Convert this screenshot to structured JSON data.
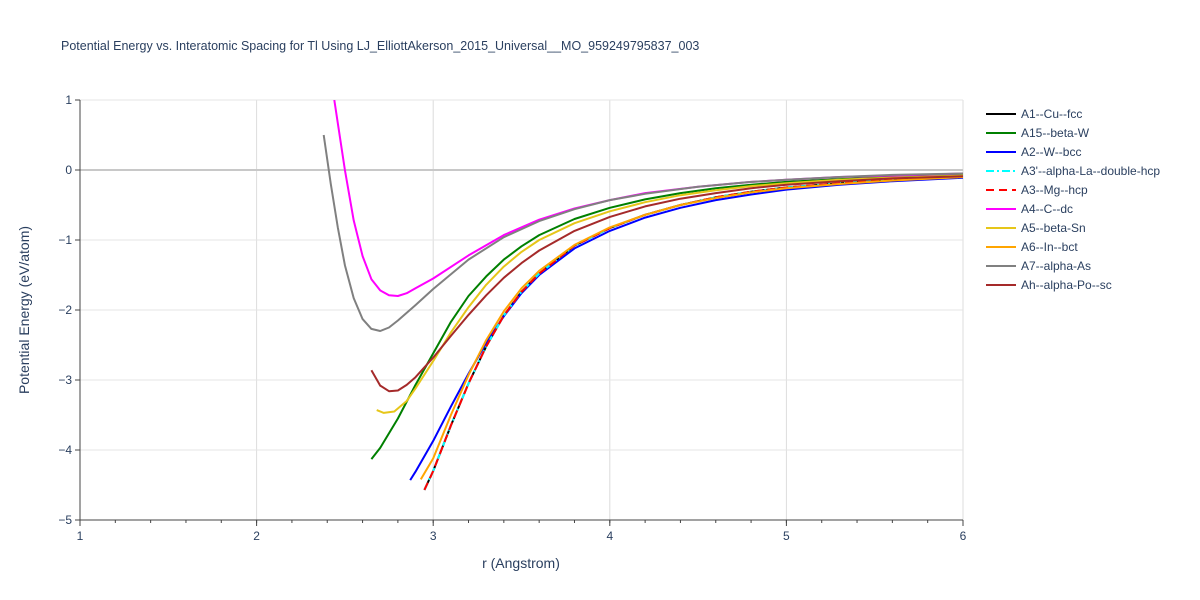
{
  "chart_data": {
    "type": "line",
    "title": "Potential Energy vs. Interatomic Spacing for Tl Using LJ_ElliottAkerson_2015_Universal__MO_959249795837_003",
    "xlabel": "r (Angstrom)",
    "ylabel": "Potential Energy (eV/atom)",
    "xlim": [
      1,
      6
    ],
    "ylim": [
      -5,
      1
    ],
    "x_ticks": [
      1,
      2,
      3,
      4,
      5,
      6
    ],
    "x_tick_labels": [
      "1",
      "2",
      "3",
      "4",
      "5",
      "6"
    ],
    "y_ticks": [
      1,
      0,
      -1,
      -2,
      -3,
      -4,
      -5
    ],
    "y_tick_labels": [
      "1",
      "0",
      "−1",
      "−2",
      "−3",
      "−4",
      "−5"
    ],
    "grid": true,
    "legend_position": "top-right",
    "series": [
      {
        "name": "A1--Cu--fcc",
        "color": "#000000",
        "dash": "solid",
        "x": [
          2.95,
          3.0,
          3.1,
          3.2,
          3.3,
          3.4,
          3.5,
          3.6,
          3.8,
          4.0,
          4.2,
          4.4,
          4.6,
          4.8,
          5.0,
          5.3,
          5.6,
          6.0
        ],
        "y": [
          -4.57,
          -4.3,
          -3.65,
          -3.05,
          -2.52,
          -2.08,
          -1.74,
          -1.48,
          -1.08,
          -0.83,
          -0.64,
          -0.5,
          -0.39,
          -0.31,
          -0.25,
          -0.19,
          -0.14,
          -0.1
        ]
      },
      {
        "name": "A15--beta-W",
        "color": "#008000",
        "dash": "solid",
        "x": [
          2.65,
          2.7,
          2.8,
          2.9,
          3.0,
          3.1,
          3.2,
          3.3,
          3.4,
          3.5,
          3.6,
          3.8,
          4.0,
          4.2,
          4.4,
          4.6,
          4.8,
          5.0,
          5.3,
          5.6,
          6.0
        ],
        "y": [
          -4.13,
          -3.97,
          -3.55,
          -3.07,
          -2.62,
          -2.17,
          -1.8,
          -1.52,
          -1.28,
          -1.09,
          -0.93,
          -0.7,
          -0.54,
          -0.42,
          -0.33,
          -0.26,
          -0.21,
          -0.17,
          -0.13,
          -0.1,
          -0.07
        ]
      },
      {
        "name": "A2--W--bcc",
        "color": "#0000ff",
        "dash": "solid",
        "x": [
          2.87,
          2.9,
          3.0,
          3.1,
          3.2,
          3.3,
          3.4,
          3.5,
          3.6,
          3.8,
          4.0,
          4.2,
          4.4,
          4.6,
          4.8,
          5.0,
          5.3,
          5.6,
          6.0
        ],
        "y": [
          -4.43,
          -4.31,
          -3.87,
          -3.38,
          -2.91,
          -2.47,
          -2.09,
          -1.76,
          -1.5,
          -1.12,
          -0.87,
          -0.68,
          -0.54,
          -0.43,
          -0.35,
          -0.28,
          -0.21,
          -0.16,
          -0.11
        ]
      },
      {
        "name": "A3'--alpha-La--double-hcp",
        "color": "#00ffff",
        "dash": "dashdot",
        "x": [
          2.95,
          3.0,
          3.1,
          3.2,
          3.3,
          3.4,
          3.5,
          3.6,
          3.8,
          4.0,
          4.2,
          4.4,
          4.6,
          4.8,
          5.0,
          5.3,
          5.6,
          6.0
        ],
        "y": [
          -4.57,
          -4.3,
          -3.65,
          -3.05,
          -2.52,
          -2.08,
          -1.74,
          -1.48,
          -1.08,
          -0.83,
          -0.64,
          -0.5,
          -0.39,
          -0.31,
          -0.25,
          -0.19,
          -0.14,
          -0.1
        ]
      },
      {
        "name": "A3--Mg--hcp",
        "color": "#ff0000",
        "dash": "dash",
        "x": [
          2.95,
          3.0,
          3.1,
          3.2,
          3.3,
          3.4,
          3.5,
          3.6,
          3.8,
          4.0,
          4.2,
          4.4,
          4.6,
          4.8,
          5.0,
          5.3,
          5.6,
          6.0
        ],
        "y": [
          -4.57,
          -4.3,
          -3.65,
          -3.05,
          -2.52,
          -2.08,
          -1.74,
          -1.48,
          -1.08,
          -0.83,
          -0.64,
          -0.5,
          -0.39,
          -0.31,
          -0.25,
          -0.19,
          -0.14,
          -0.1
        ]
      },
      {
        "name": "A4--C--dc",
        "color": "#ff00ff",
        "dash": "solid",
        "x": [
          2.44,
          2.5,
          2.55,
          2.6,
          2.65,
          2.7,
          2.75,
          2.8,
          2.85,
          2.9,
          3.0,
          3.2,
          3.4,
          3.6,
          3.8,
          4.0,
          4.2,
          4.5,
          4.8,
          5.0,
          5.3,
          5.6,
          6.0
        ],
        "y": [
          1.0,
          0.0,
          -0.72,
          -1.23,
          -1.56,
          -1.72,
          -1.79,
          -1.8,
          -1.76,
          -1.69,
          -1.55,
          -1.22,
          -0.93,
          -0.71,
          -0.55,
          -0.43,
          -0.33,
          -0.24,
          -0.17,
          -0.14,
          -0.1,
          -0.08,
          -0.05
        ]
      },
      {
        "name": "A5--beta-Sn",
        "color": "#e6c619",
        "dash": "solid",
        "x": [
          2.68,
          2.72,
          2.78,
          2.85,
          2.9,
          3.0,
          3.1,
          3.2,
          3.3,
          3.4,
          3.5,
          3.6,
          3.8,
          4.0,
          4.2,
          4.4,
          4.6,
          4.8,
          5.0,
          5.3,
          5.6,
          6.0
        ],
        "y": [
          -3.43,
          -3.47,
          -3.45,
          -3.3,
          -3.12,
          -2.73,
          -2.32,
          -1.96,
          -1.64,
          -1.38,
          -1.17,
          -1.0,
          -0.76,
          -0.59,
          -0.46,
          -0.36,
          -0.29,
          -0.23,
          -0.19,
          -0.14,
          -0.11,
          -0.08
        ]
      },
      {
        "name": "A6--In--bct",
        "color": "#ffa500",
        "dash": "solid",
        "x": [
          2.93,
          3.0,
          3.1,
          3.2,
          3.3,
          3.4,
          3.5,
          3.6,
          3.8,
          4.0,
          4.2,
          4.4,
          4.6,
          4.8,
          5.0,
          5.3,
          5.6,
          6.0
        ],
        "y": [
          -4.42,
          -4.12,
          -3.5,
          -2.93,
          -2.43,
          -2.02,
          -1.69,
          -1.44,
          -1.07,
          -0.82,
          -0.64,
          -0.5,
          -0.4,
          -0.32,
          -0.26,
          -0.2,
          -0.15,
          -0.1
        ]
      },
      {
        "name": "A7--alpha-As",
        "color": "#808080",
        "dash": "solid",
        "x": [
          2.38,
          2.42,
          2.46,
          2.5,
          2.55,
          2.6,
          2.65,
          2.7,
          2.75,
          2.8,
          2.9,
          3.0,
          3.2,
          3.4,
          3.6,
          3.8,
          4.0,
          4.2,
          4.5,
          4.8,
          5.0,
          5.3,
          5.6,
          6.0
        ],
        "y": [
          0.5,
          -0.2,
          -0.82,
          -1.36,
          -1.83,
          -2.13,
          -2.27,
          -2.3,
          -2.25,
          -2.15,
          -1.93,
          -1.7,
          -1.28,
          -0.96,
          -0.73,
          -0.56,
          -0.43,
          -0.34,
          -0.24,
          -0.17,
          -0.14,
          -0.1,
          -0.07,
          -0.05
        ]
      },
      {
        "name": "Ah--alpha-Po--sc",
        "color": "#a52a2a",
        "dash": "solid",
        "x": [
          2.65,
          2.7,
          2.75,
          2.8,
          2.85,
          2.9,
          3.0,
          3.1,
          3.2,
          3.3,
          3.4,
          3.5,
          3.6,
          3.8,
          4.0,
          4.2,
          4.4,
          4.6,
          4.8,
          5.0,
          5.3,
          5.6,
          6.0
        ],
        "y": [
          -2.86,
          -3.08,
          -3.16,
          -3.15,
          -3.07,
          -2.96,
          -2.68,
          -2.37,
          -2.07,
          -1.79,
          -1.54,
          -1.33,
          -1.15,
          -0.87,
          -0.67,
          -0.52,
          -0.41,
          -0.33,
          -0.26,
          -0.21,
          -0.16,
          -0.12,
          -0.09
        ]
      }
    ]
  }
}
